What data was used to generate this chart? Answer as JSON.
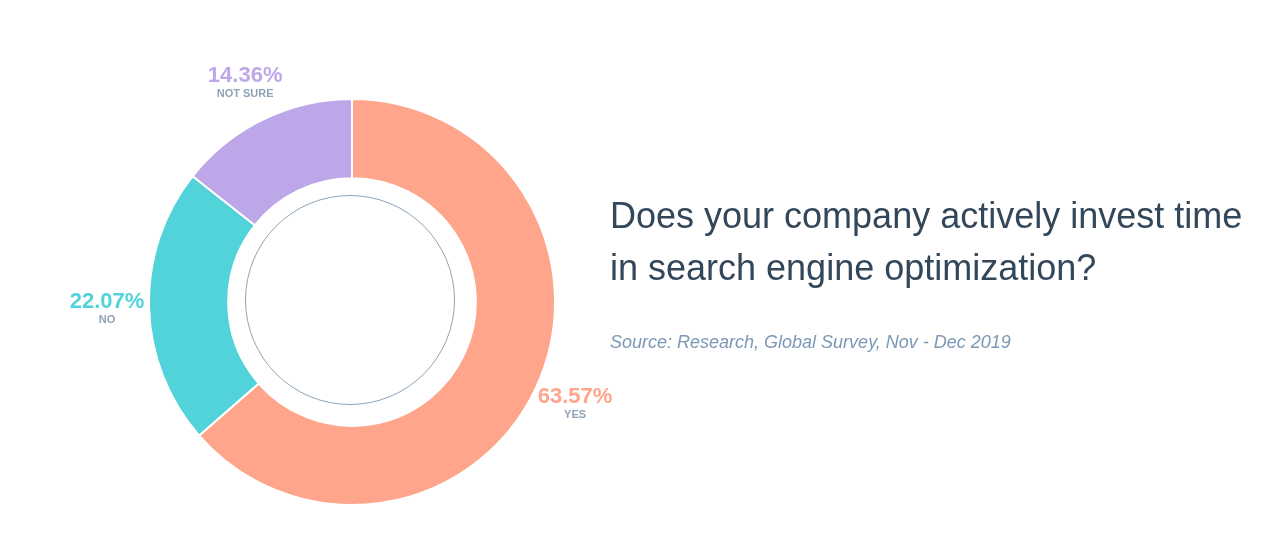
{
  "chart_data": {
    "type": "donut",
    "title": "Does your company actively invest time in search engine optimization?",
    "categories": [
      "YES",
      "NO",
      "NOT SURE"
    ],
    "values": [
      63.57,
      22.07,
      14.36
    ],
    "colors": [
      "#fea58c",
      "#51d3d9",
      "#bea7e8"
    ],
    "value_labels": [
      "63.57%",
      "22.07%",
      "14.36%"
    ],
    "legend": false,
    "annotations": [
      "Source: Research, Global Survey, Nov - Dec 2019"
    ]
  }
}
